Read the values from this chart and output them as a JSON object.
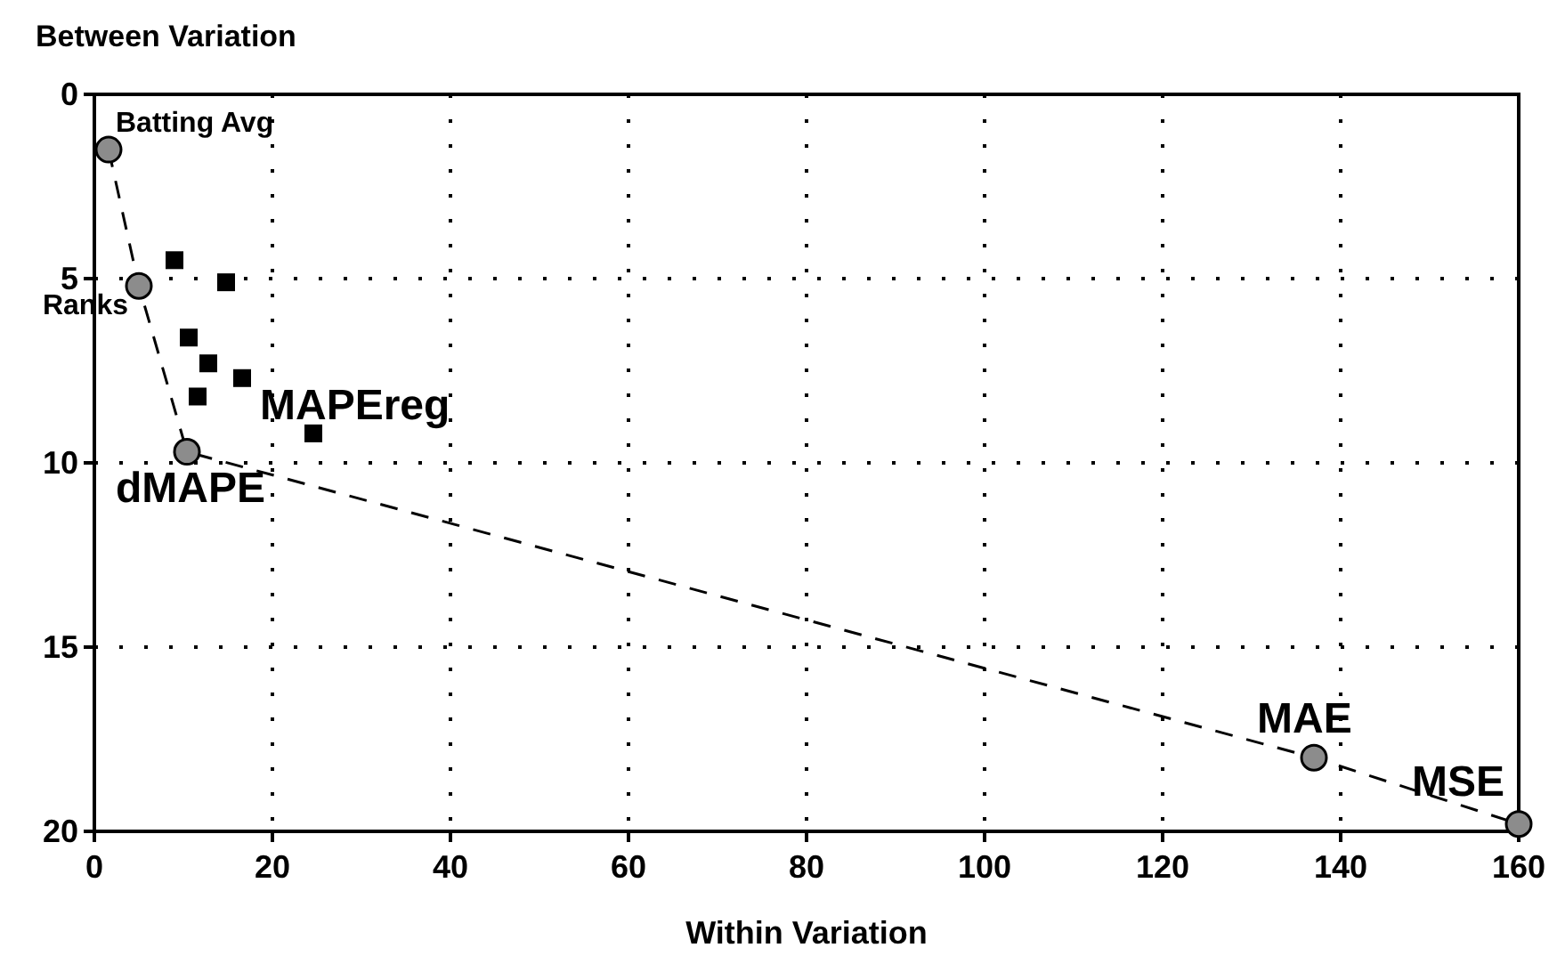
{
  "chart_data": {
    "type": "line",
    "xlabel": "Within Variation",
    "ylabel": "Between Variation",
    "xlim": [
      0,
      160
    ],
    "ylim": [
      20,
      0
    ],
    "xticks": [
      0,
      20,
      40,
      60,
      80,
      100,
      120,
      140,
      160
    ],
    "yticks": [
      0,
      5,
      10,
      15,
      20
    ],
    "grid": true,
    "series": [
      {
        "color": "#8c8c8c",
        "marker": "circle",
        "line_style": "dashed",
        "x": [
          1.6,
          5,
          10.4,
          137,
          160
        ],
        "values": [
          1.5,
          5.2,
          9.7,
          18,
          19.8
        ]
      },
      {
        "type": "scatter",
        "color": "#000000",
        "marker": "square",
        "x": [
          9,
          14.8,
          10.6,
          12.8,
          16.6,
          11.6,
          24.6
        ],
        "values": [
          4.5,
          5.1,
          6.6,
          7.3,
          7.7,
          8.2,
          9.2
        ]
      }
    ],
    "annotations": [
      {
        "text": "Batting Avg",
        "x": 1.6,
        "y": 1.5
      },
      {
        "text": "Ranks",
        "x": 5,
        "y": 5.2
      },
      {
        "text": "dMAPE",
        "x": 10.4,
        "y": 9.7
      },
      {
        "text": "MAPEreg",
        "x": 24.6,
        "y": 9.2
      },
      {
        "text": "MAE",
        "x": 137,
        "y": 18
      },
      {
        "text": "MSE",
        "x": 160,
        "y": 19.8
      }
    ]
  }
}
